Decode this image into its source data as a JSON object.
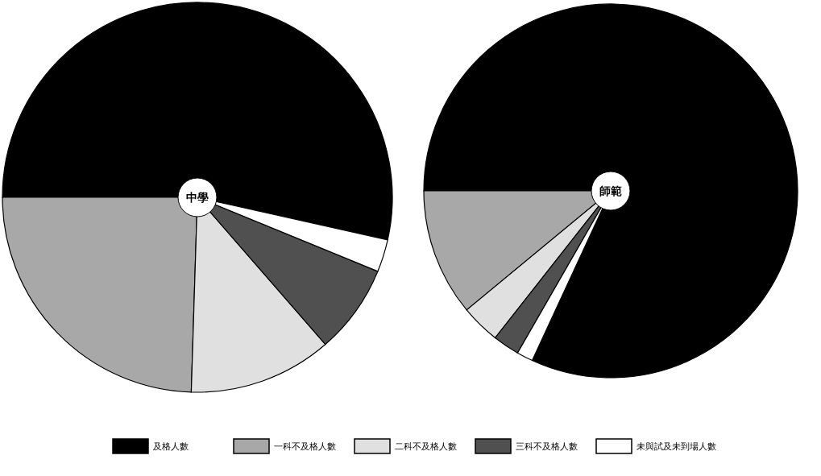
{
  "chart_data": [
    {
      "type": "pie",
      "title": "中學",
      "categories": [
        "及格人數",
        "一科不及格人數",
        "二科不及格人數",
        "三科不及格人數",
        "未與試及未到場人數"
      ],
      "values": [
        53.5,
        24.5,
        11.9,
        7.4,
        2.7
      ],
      "colors": [
        "#000000",
        "#a8a8a8",
        "#e0e0e0",
        "#505050",
        "#ffffff"
      ],
      "legend": "bottom"
    },
    {
      "type": "pie",
      "title": "師範",
      "categories": [
        null,
        null,
        null,
        null,
        null
      ],
      "values": [
        81.9,
        11.0,
        3.4,
        2.3,
        1.4
      ],
      "colors": [
        "#000000",
        "#a8a8a8",
        "#e0e0e0",
        "#505050",
        "#ffffff"
      ]
    }
  ]
}
